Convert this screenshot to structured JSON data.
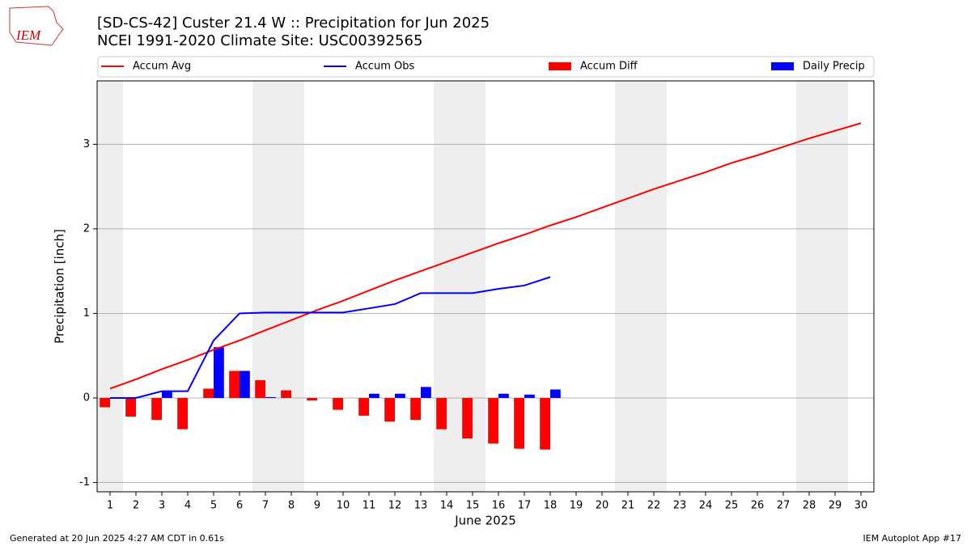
{
  "chart_data": {
    "type": "bar_line",
    "logo": "IEM",
    "title": "[SD-CS-42] Custer 21.4 W :: Precipitation for Jun 2025",
    "subtitle": "NCEI 1991-2020 Climate Site: USC00392565",
    "y_label": "Precipitation [inch]",
    "x_label": "June 2025",
    "footer_left": "Generated at 20 Jun 2025 4:27 AM CDT in 0.61s",
    "footer_right": "IEM Autoplot App #17",
    "x": [
      1,
      2,
      3,
      4,
      5,
      6,
      7,
      8,
      9,
      10,
      11,
      12,
      13,
      14,
      15,
      16,
      17,
      18,
      19,
      20,
      21,
      22,
      23,
      24,
      25,
      26,
      27,
      28,
      29,
      30
    ],
    "xlim": [
      0.5,
      30.5
    ],
    "xticks": [
      1,
      2,
      3,
      4,
      5,
      6,
      7,
      8,
      9,
      10,
      11,
      12,
      13,
      14,
      15,
      16,
      17,
      18,
      19,
      20,
      21,
      22,
      23,
      24,
      25,
      26,
      27,
      28,
      29,
      30
    ],
    "ylim": [
      -1.11,
      3.75
    ],
    "yticks": [
      -1,
      0,
      1,
      2,
      3
    ],
    "grid": true,
    "shaded_x": [
      [
        0.5,
        1.5
      ],
      [
        6.5,
        8.5
      ],
      [
        13.5,
        15.5
      ],
      [
        20.5,
        22.5
      ],
      [
        27.5,
        29.5
      ]
    ],
    "shade_color": "#eeeeee",
    "series": [
      {
        "name": "Accum Avg",
        "kind": "line",
        "color": "#ff0000",
        "values": [
          0.11,
          0.22,
          0.34,
          0.45,
          0.57,
          0.68,
          0.8,
          0.92,
          1.04,
          1.15,
          1.27,
          1.39,
          1.5,
          1.61,
          1.72,
          1.83,
          1.93,
          2.04,
          2.14,
          2.25,
          2.36,
          2.47,
          2.57,
          2.67,
          2.78,
          2.87,
          2.97,
          3.07,
          3.16,
          3.25
        ]
      },
      {
        "name": "Accum Obs",
        "kind": "line",
        "color": "#0000ff",
        "values": [
          0,
          0,
          0.08,
          0.08,
          0.68,
          1.0,
          1.01,
          1.01,
          1.01,
          1.01,
          1.06,
          1.11,
          1.24,
          1.24,
          1.24,
          1.29,
          1.33,
          1.43,
          null,
          null,
          null,
          null,
          null,
          null,
          null,
          null,
          null,
          null,
          null,
          null
        ]
      },
      {
        "name": "Accum Diff",
        "kind": "bar",
        "color": "#ff0000",
        "values": [
          -0.11,
          -0.22,
          -0.26,
          -0.37,
          0.11,
          0.32,
          0.21,
          0.09,
          -0.03,
          -0.14,
          -0.21,
          -0.28,
          -0.26,
          -0.37,
          -0.48,
          -0.54,
          -0.6,
          -0.61,
          null,
          null,
          null,
          null,
          null,
          null,
          null,
          null,
          null,
          null,
          null,
          null
        ]
      },
      {
        "name": "Daily Precip",
        "kind": "bar",
        "color": "#0000ff",
        "values": [
          0,
          0,
          0.08,
          0,
          0.6,
          0.32,
          0.01,
          0,
          0,
          0,
          0.05,
          0.05,
          0.13,
          0,
          0,
          0.05,
          0.04,
          0.1,
          null,
          null,
          null,
          null,
          null,
          null,
          null,
          null,
          null,
          null,
          null,
          null
        ]
      }
    ]
  }
}
